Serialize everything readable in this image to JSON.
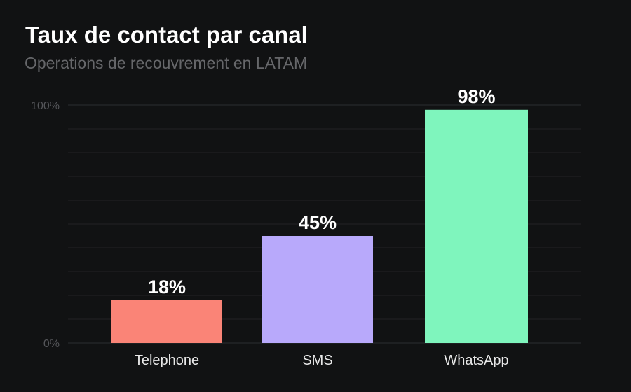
{
  "chart_data": {
    "type": "bar",
    "title": "Taux de contact par canal",
    "subtitle": "Operations de recouvrement en LATAM",
    "categories": [
      "Telephone",
      "SMS",
      "WhatsApp"
    ],
    "values": [
      18,
      45,
      98
    ],
    "data_labels": [
      "18%",
      "45%",
      "98%"
    ],
    "colors": [
      "#fa8477",
      "#b8a9fb",
      "#7ff5bd"
    ],
    "ylim": [
      0,
      100
    ],
    "yticks": [
      {
        "value": 0,
        "label": "0%"
      },
      {
        "value": 100,
        "label": "100%"
      }
    ],
    "grid": true,
    "grid_step": 10,
    "xlabel": "",
    "ylabel": "",
    "background": "#111213"
  }
}
